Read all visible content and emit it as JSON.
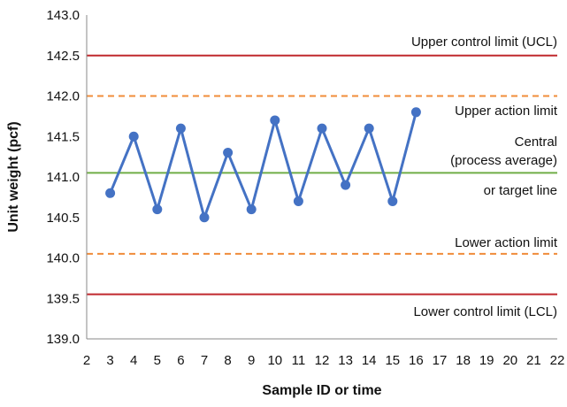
{
  "chart_data": {
    "type": "line",
    "xlabel": "Sample ID or time",
    "ylabel": "Unit weight (pcf)",
    "xlim": [
      2,
      22
    ],
    "ylim": [
      139.0,
      143.0
    ],
    "x_ticks": [
      2,
      3,
      4,
      5,
      6,
      7,
      8,
      9,
      10,
      11,
      12,
      13,
      14,
      15,
      16,
      17,
      18,
      19,
      20,
      21,
      22
    ],
    "y_ticks": [
      "139.0",
      "139.5",
      "140.0",
      "140.5",
      "141.0",
      "141.5",
      "142.0",
      "142.5",
      "143.0"
    ],
    "grid": false,
    "series": [
      {
        "color": "#4472c4",
        "x": [
          3,
          4,
          5,
          6,
          7,
          8,
          9,
          10,
          11,
          12,
          13,
          14,
          15,
          16
        ],
        "y": [
          140.8,
          141.5,
          140.6,
          141.6,
          140.5,
          141.3,
          140.6,
          141.7,
          140.7,
          141.6,
          140.9,
          141.6,
          140.7,
          141.8
        ]
      }
    ],
    "reference_lines": [
      {
        "value": 142.5,
        "style": "solid",
        "color": "#c0282d"
      },
      {
        "value": 142.0,
        "style": "dashed",
        "color": "#f08c3a"
      },
      {
        "value": 141.05,
        "style": "solid",
        "color": "#70ad47"
      },
      {
        "value": 140.05,
        "style": "dashed",
        "color": "#f08c3a"
      },
      {
        "value": 139.55,
        "style": "solid",
        "color": "#c0282d"
      }
    ],
    "annotations": {
      "ucl": "Upper control limit (UCL)",
      "upper_action": "Upper action limit",
      "central_1": "Central",
      "central_2": "(process average)",
      "central_3": "or target line",
      "lower_action": "Lower action limit",
      "lcl": "Lower control limit (LCL)"
    }
  }
}
